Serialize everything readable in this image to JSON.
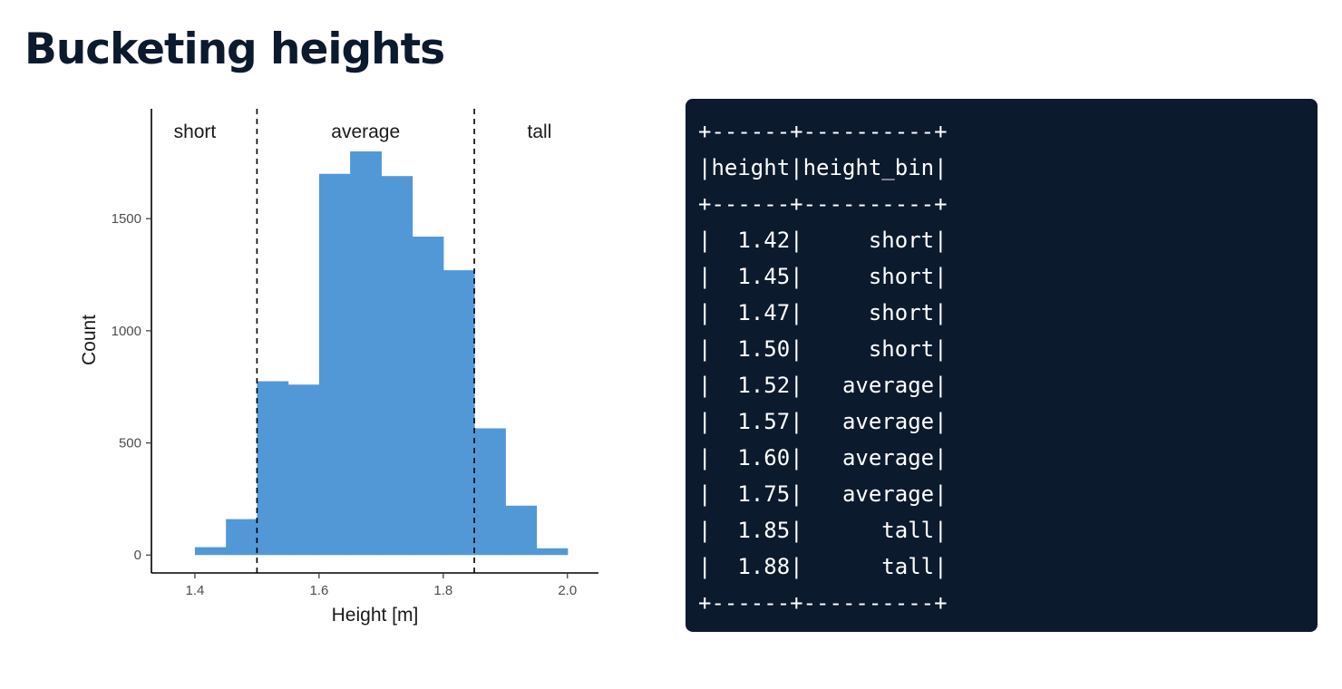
{
  "title": "Bucketing heights",
  "chart_data": {
    "type": "bar",
    "subtype": "histogram",
    "xlabel": "Height [m]",
    "ylabel": "Count",
    "xlim": [
      1.33,
      2.05
    ],
    "ylim": [
      -80,
      1990
    ],
    "xticks": [
      1.4,
      1.6,
      1.8,
      2.0
    ],
    "xtick_labels": [
      "1.4",
      "1.6",
      "1.8",
      "2.0"
    ],
    "yticks": [
      0,
      500,
      1000,
      1500
    ],
    "ytick_labels": [
      "0",
      "500",
      "1000",
      "1500"
    ],
    "bin_width": 0.05,
    "bins": [
      {
        "start": 1.4,
        "end": 1.45,
        "count": 35
      },
      {
        "start": 1.45,
        "end": 1.5,
        "count": 160
      },
      {
        "start": 1.5,
        "end": 1.55,
        "count": 775
      },
      {
        "start": 1.55,
        "end": 1.6,
        "count": 760
      },
      {
        "start": 1.6,
        "end": 1.65,
        "count": 1700
      },
      {
        "start": 1.65,
        "end": 1.7,
        "count": 1800
      },
      {
        "start": 1.7,
        "end": 1.75,
        "count": 1690
      },
      {
        "start": 1.75,
        "end": 1.8,
        "count": 1420
      },
      {
        "start": 1.8,
        "end": 1.85,
        "count": 1270
      },
      {
        "start": 1.85,
        "end": 1.9,
        "count": 565
      },
      {
        "start": 1.9,
        "end": 1.95,
        "count": 220
      },
      {
        "start": 1.95,
        "end": 2.0,
        "count": 30
      }
    ],
    "thresholds": [
      1.5,
      1.85
    ],
    "region_labels": [
      {
        "text": "short",
        "x": 1.4
      },
      {
        "text": "average",
        "x": 1.675
      },
      {
        "text": "tall",
        "x": 1.955
      }
    ],
    "bar_color": "#5398d6",
    "grid": false,
    "legend": "none"
  },
  "console": {
    "lines": [
      "+------+----------+",
      "|height|height_bin|",
      "+------+----------+",
      "|  1.42|     short|",
      "|  1.45|     short|",
      "|  1.47|     short|",
      "|  1.50|     short|",
      "|  1.52|   average|",
      "|  1.57|   average|",
      "|  1.60|   average|",
      "|  1.75|   average|",
      "|  1.85|      tall|",
      "|  1.88|      tall|",
      "+------+----------+"
    ],
    "background": "#0c1a2e",
    "text_color": "#ffffff"
  }
}
